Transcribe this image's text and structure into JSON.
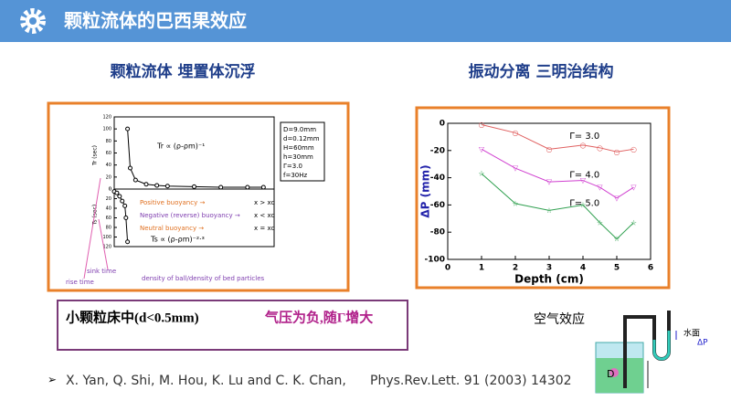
{
  "header": {
    "title": "颗粒流体的巴西果效应"
  },
  "left": {
    "title": "颗粒流体   埋置体沉浮",
    "figure": {
      "upper_y_label": "Tr (sec)",
      "lower_y_label": "Ts (sec)",
      "yticks": [
        0,
        20,
        40,
        60,
        80,
        100,
        120
      ],
      "ylim": [
        0,
        120
      ],
      "xlim": [
        0,
        3
      ],
      "rise": {
        "x": [
          0.25,
          0.3,
          0.4,
          0.6,
          0.8,
          1,
          1.5,
          2,
          2.5,
          2.8
        ],
        "values": [
          100,
          35,
          15,
          8,
          6,
          5,
          4,
          3,
          3,
          3
        ]
      },
      "sink": {
        "x": [
          0,
          0.05,
          0.1,
          0.15,
          0.2,
          0.22,
          0.25
        ],
        "values": [
          5,
          8,
          15,
          25,
          35,
          60,
          110
        ]
      },
      "params": [
        "D=9.0mm",
        "d=0.12mm",
        "H=60mm",
        "h=30mm",
        "Γ=3.0",
        "f=30Hz"
      ],
      "rise_law": "Tr ∝ (ρ-ρm)⁻¹",
      "sink_law": "Ts ∝ (ρ-ρm)⁻²·³",
      "legend": [
        [
          "Positive buoyancy →",
          "x > xc"
        ],
        [
          "Negative (reverse) buoyancy →",
          "x < xc"
        ],
        [
          "Neutral buoyancy →",
          "x = xc"
        ]
      ],
      "sink_time": "sink time",
      "rise_time": "rise time",
      "x_label": "density of ball/density of bed particles"
    }
  },
  "right": {
    "title": "振动分离 三明治结构",
    "chart": {
      "x_label": "Depth (cm)",
      "y_label": "ΔP (mm)",
      "xlim": [
        0,
        6
      ],
      "ylim": [
        -100,
        0
      ],
      "xticks": [
        0,
        1,
        2,
        3,
        4,
        5,
        6
      ],
      "yticks": [
        0,
        -20,
        -40,
        -60,
        -80,
        -100
      ],
      "x": [
        1,
        2,
        3,
        4,
        4.5,
        5,
        5.5
      ],
      "series": [
        {
          "name": "Γ= 3.0",
          "color": "#e06060",
          "values": [
            -1,
            -7,
            -19,
            -16,
            -18,
            -21,
            -19
          ]
        },
        {
          "name": "Γ= 4.0",
          "color": "#d040d0",
          "values": [
            -19,
            -33,
            -43,
            -42,
            -47,
            -55,
            -47
          ]
        },
        {
          "name": "Γ= 5.0",
          "color": "#30a050",
          "values": [
            -37,
            -59,
            -64,
            -60,
            -73,
            -85,
            -73
          ]
        }
      ]
    }
  },
  "box": {
    "left": "小颗粒床中(d<0.5mm)",
    "right": "气压为负,随Γ增大"
  },
  "citation": {
    "authors": "X. Yan, Q. Shi, M. Hou, K. Lu and C. K. Chan,",
    "journal": "Phys.Rev.Lett. 91 (2003) 14302"
  },
  "diagram": {
    "title": "空气效应",
    "water": "水面",
    "dp": "ΔP",
    "d": "D"
  }
}
